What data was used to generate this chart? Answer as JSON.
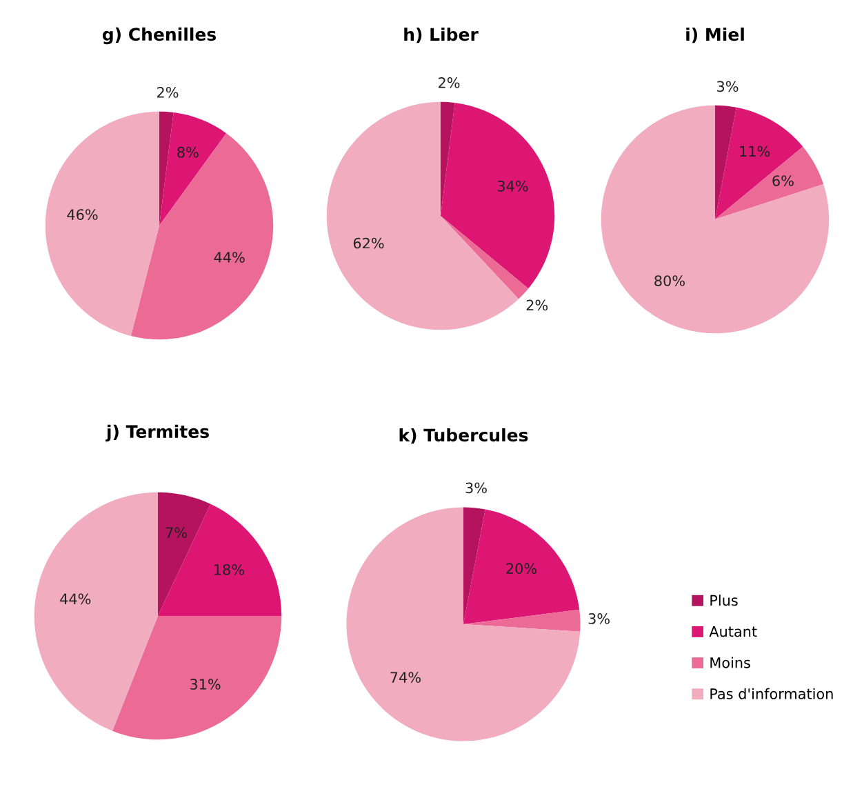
{
  "chart_data": [
    {
      "type": "pie",
      "title": "g) Chenilles",
      "categories": [
        "Plus",
        "Autant",
        "Moins",
        "Pas d'information"
      ],
      "values": [
        2,
        8,
        44,
        46
      ],
      "value_labels": [
        "2%",
        "8%",
        "44%",
        "46%"
      ],
      "colors": [
        "#b5135e",
        "#dc1672",
        "#ec6a96",
        "#f2acbf"
      ],
      "legend": "bottom right"
    },
    {
      "type": "pie",
      "title": "h) Liber",
      "categories": [
        null,
        null,
        null,
        null
      ],
      "values": [
        2,
        34,
        2,
        62
      ],
      "value_labels": [
        "2%",
        "34%",
        "2%",
        "62%"
      ],
      "colors": [
        "#b5135e",
        "#dc1672",
        "#ec6a96",
        "#f2acbf"
      ],
      "legend": false
    },
    {
      "type": "pie",
      "title": "i) Miel",
      "categories": [
        null,
        null,
        null,
        null
      ],
      "values": [
        3,
        11,
        6,
        80
      ],
      "value_labels": [
        "3%",
        "11%",
        "6%",
        "80%"
      ],
      "colors": [
        "#b5135e",
        "#dc1672",
        "#ec6a96",
        "#f2acbf"
      ],
      "legend": false
    },
    {
      "type": "pie",
      "title": "j) Termites",
      "categories": [
        null,
        null,
        null,
        null
      ],
      "values": [
        7,
        18,
        31,
        44
      ],
      "value_labels": [
        "7%",
        "18%",
        "31%",
        "44%"
      ],
      "colors": [
        "#b5135e",
        "#dc1672",
        "#ec6a96",
        "#f2acbf"
      ],
      "legend": false
    },
    {
      "type": "pie",
      "title": "k) Tubercules",
      "categories": [
        null,
        null,
        null,
        null
      ],
      "values": [
        3,
        20,
        3,
        74
      ],
      "value_labels": [
        "3%",
        "20%",
        "3%",
        "74%"
      ],
      "colors": [
        "#b5135e",
        "#dc1672",
        "#ec6a96",
        "#f2acbf"
      ],
      "legend": false
    }
  ]
}
